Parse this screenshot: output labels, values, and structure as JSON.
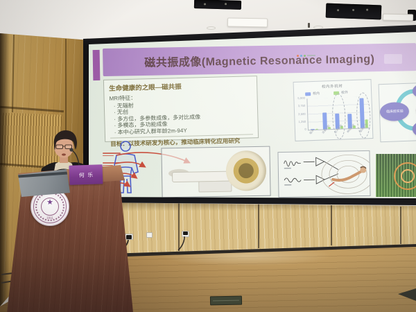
{
  "slide": {
    "title": "磁共振成像(Magnetic Resonance Imaging)",
    "intro_box": {
      "heading": "生命健康的之眼—磁共振",
      "features_label": "MRI特征：",
      "bullets": [
        "无辐射",
        "无创",
        "多方位，多参数成像，多对比成像",
        "多模态，多功能成像",
        "本中心研究人群年龄2m-94Y"
      ],
      "goal": "目标：以技术研发为核心，推动临床转化应用研究"
    },
    "cycle_diagram": {
      "labels": [
        "临床前实验",
        "临床",
        "核技",
        "神心"
      ]
    }
  },
  "chart_data": {
    "type": "bar",
    "title": "校内外机时",
    "categories": [
      "临床",
      "设备研制",
      "技术研发",
      "神经科学",
      "临床应用"
    ],
    "series": [
      {
        "name": "校内",
        "color": "#6d8ce8",
        "values": [
          150,
          2600,
          2400,
          2300,
          4700
        ]
      },
      {
        "name": "校外",
        "color": "#95d36b",
        "values": [
          120,
          350,
          400,
          420,
          1300
        ]
      }
    ],
    "ylim": [
      0,
      5000
    ],
    "yticks": [
      "5,000",
      "3,750",
      "2,500",
      "1,250",
      "0"
    ],
    "legend_position": "top",
    "grid": true,
    "highlighted_groups": [
      2,
      4
    ]
  },
  "podium": {
    "name_card": "何乐",
    "emblem_year": "1911",
    "emblem_star": "★"
  },
  "colors": {
    "banner_purple": "#b88ecf",
    "accent_purple": "#93479f",
    "bar_blue": "#6d8ce8",
    "bar_green": "#95d36b",
    "ring_teal": "#48b8c6",
    "ellipse_purple": "#7b74c4",
    "ellipse_maroon": "#94516e",
    "name_card_purple": "#7b3a8b"
  }
}
